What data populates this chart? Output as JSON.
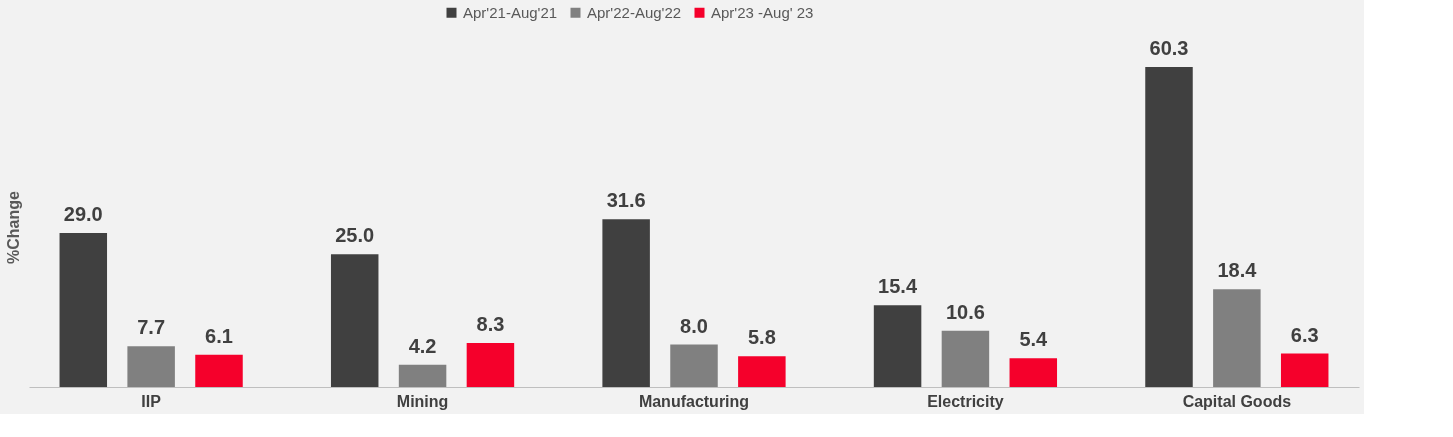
{
  "chart_data": {
    "type": "bar",
    "ylabel": "%Change",
    "categories": [
      "IIP",
      "Mining",
      "Manufacturing",
      "Electricity",
      "Capital Goods"
    ],
    "series": [
      {
        "name": "Apr'21-Aug'21",
        "color": "#404040",
        "values": [
          29.0,
          25.0,
          31.6,
          15.4,
          60.3
        ],
        "value_labels": [
          "29.0",
          "25.0",
          "31.6",
          "15.4",
          "60.3"
        ]
      },
      {
        "name": "Apr'22-Aug'22",
        "color": "#808080",
        "values": [
          7.7,
          4.2,
          8.0,
          10.6,
          18.4
        ],
        "value_labels": [
          "7.7",
          "4.2",
          "8.0",
          "10.6",
          "18.4"
        ]
      },
      {
        "name": "Apr'23 -Aug' 23",
        "color": "#f5002b",
        "values": [
          6.1,
          8.3,
          5.8,
          5.4,
          6.3
        ],
        "value_labels": [
          "6.1",
          "8.3",
          "5.8",
          "5.4",
          "6.3"
        ]
      }
    ],
    "legend": "top",
    "grid": false,
    "tick_labels": "x"
  }
}
